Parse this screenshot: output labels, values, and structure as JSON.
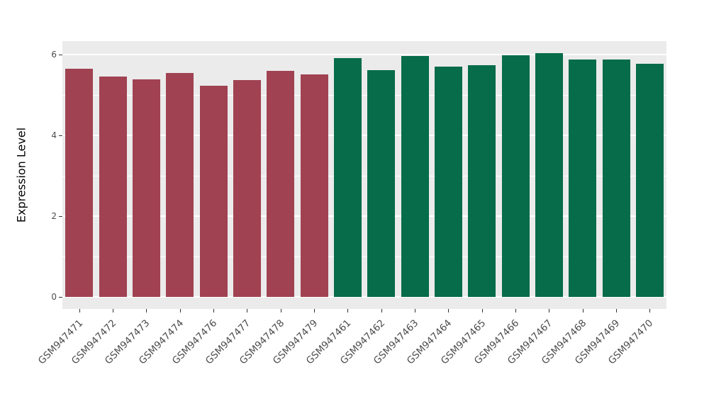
{
  "chart_data": {
    "type": "bar",
    "title": "",
    "xlabel": "",
    "ylabel": "Expression Level",
    "ylim": [
      0,
      6.35
    ],
    "yticks": [
      0,
      2,
      4,
      6
    ],
    "ytick_labels": [
      "0",
      "2",
      "4",
      "6"
    ],
    "minor_ticks": [
      1,
      3,
      5
    ],
    "grid": true,
    "legend_position": "none",
    "categories": [
      "GSM947471",
      "GSM947472",
      "GSM947473",
      "GSM947474",
      "GSM947476",
      "GSM947477",
      "GSM947478",
      "GSM947479",
      "GSM947461",
      "GSM947462",
      "GSM947463",
      "GSM947464",
      "GSM947465",
      "GSM947466",
      "GSM947467",
      "GSM947468",
      "GSM947469",
      "GSM947470"
    ],
    "values": [
      5.65,
      5.45,
      5.38,
      5.55,
      5.22,
      5.37,
      5.6,
      5.5,
      5.92,
      5.62,
      5.97,
      5.7,
      5.73,
      5.99,
      6.04,
      5.88,
      5.88,
      5.78
    ],
    "bar_colors": [
      "#A04252",
      "#A04252",
      "#A04252",
      "#A04252",
      "#A04252",
      "#A04252",
      "#A04252",
      "#A04252",
      "#066C49",
      "#066C49",
      "#066C49",
      "#066C49",
      "#066C49",
      "#066C49",
      "#066C49",
      "#066C49",
      "#066C49",
      "#066C49"
    ],
    "group_colors": {
      "red_group": "#A04252",
      "green_group": "#066C49"
    },
    "panel_background": "#EBEBEB",
    "grid_color": "#FFFFFF",
    "axis_text_color": "#4D4D4D"
  }
}
